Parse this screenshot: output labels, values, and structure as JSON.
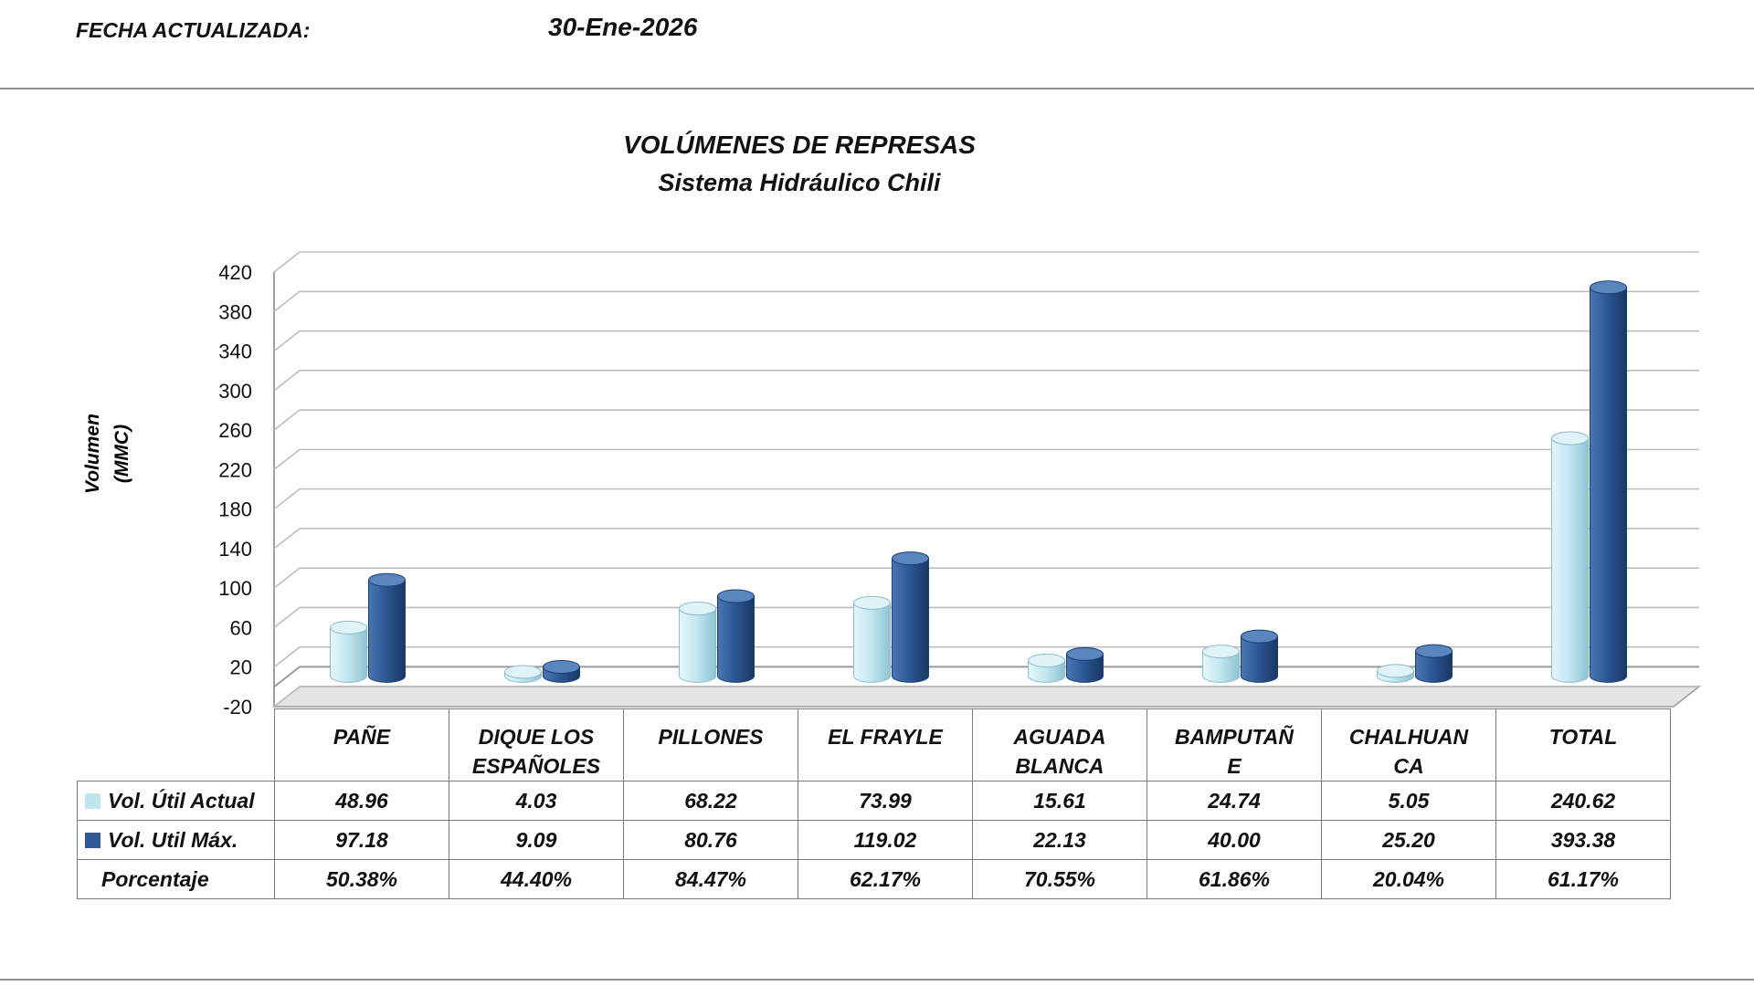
{
  "header": {
    "label": "FECHA ACTUALIZADA:",
    "date": "30-Ene-2026"
  },
  "chart_data": {
    "type": "bar",
    "title": "VOLÚMENES DE REPRESAS",
    "subtitle": "Sistema Hidráulico Chili",
    "ylabel_line1": "Volumen",
    "ylabel_line2": "(MMC)",
    "ylim": [
      -20,
      420
    ],
    "yticks": [
      -20,
      20,
      60,
      100,
      140,
      180,
      220,
      260,
      300,
      340,
      380,
      420
    ],
    "grid": true,
    "categories": [
      "PAÑE",
      "DIQUE LOS ESPAÑOLES",
      "PILLONES",
      "EL FRAYLE",
      "AGUADA BLANCA",
      "BAMPUTAÑE",
      "CHALHUANCA",
      "TOTAL"
    ],
    "category_lines": [
      [
        "PAÑE"
      ],
      [
        "DIQUE LOS",
        "ESPAÑOLES"
      ],
      [
        "PILLONES"
      ],
      [
        "EL FRAYLE"
      ],
      [
        "AGUADA",
        "BLANCA"
      ],
      [
        "BAMPUTAÑ",
        "E"
      ],
      [
        "CHALHUAN",
        "CA"
      ],
      [
        "TOTAL"
      ]
    ],
    "series": [
      {
        "name": "Vol. Útil Actual",
        "color": "#bfe6ef",
        "values": [
          48.96,
          4.03,
          68.22,
          73.99,
          15.61,
          24.74,
          5.05,
          240.62
        ],
        "labels": [
          "48.96",
          "4.03",
          "68.22",
          "73.99",
          "15.61",
          "24.74",
          "5.05",
          "240.62"
        ]
      },
      {
        "name": "Vol. Util Máx.",
        "color": "#2d5894",
        "values": [
          97.18,
          9.09,
          80.76,
          119.02,
          22.13,
          40.0,
          25.2,
          393.38
        ],
        "labels": [
          "97.18",
          "9.09",
          "80.76",
          "119.02",
          "22.13",
          "40.00",
          "25.20",
          "393.38"
        ]
      }
    ],
    "percent_row": {
      "label": "Porcentaje",
      "values": [
        "50.38%",
        "44.40%",
        "84.47%",
        "62.17%",
        "70.55%",
        "61.86%",
        "20.04%",
        "61.17%"
      ]
    }
  }
}
